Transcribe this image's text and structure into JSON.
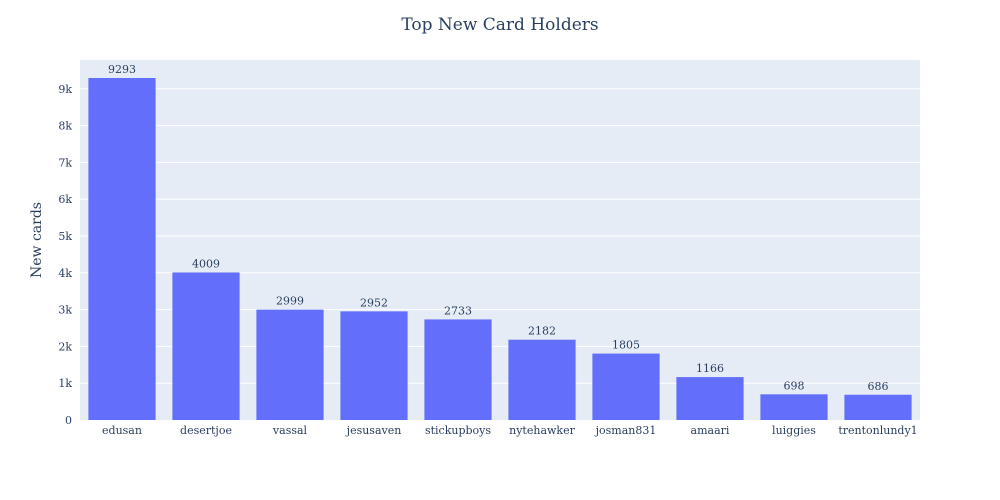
{
  "chart_data": {
    "type": "bar",
    "title": "Top New Card Holders",
    "xlabel": "",
    "ylabel": "New cards",
    "categories": [
      "edusan",
      "desertjoe",
      "vassal",
      "jesusaven",
      "stickupboys",
      "nytehawker",
      "josman831",
      "amaari",
      "luiggies",
      "trentonlundy1"
    ],
    "values": [
      9293,
      4009,
      2999,
      2952,
      2733,
      2182,
      1805,
      1166,
      698,
      686
    ],
    "ylim": [
      0,
      9782
    ],
    "y_ticks": [
      0,
      1000,
      2000,
      3000,
      4000,
      5000,
      6000,
      7000,
      8000,
      9000
    ],
    "y_tick_labels": [
      "0",
      "1k",
      "2k",
      "3k",
      "4k",
      "5k",
      "6k",
      "7k",
      "8k",
      "9k"
    ],
    "grid": true,
    "legend": "none",
    "colors": {
      "bar": "#636efa",
      "plot_bg": "#e5ecf6",
      "grid": "#ffffff",
      "text": "#2a3f5f"
    }
  }
}
